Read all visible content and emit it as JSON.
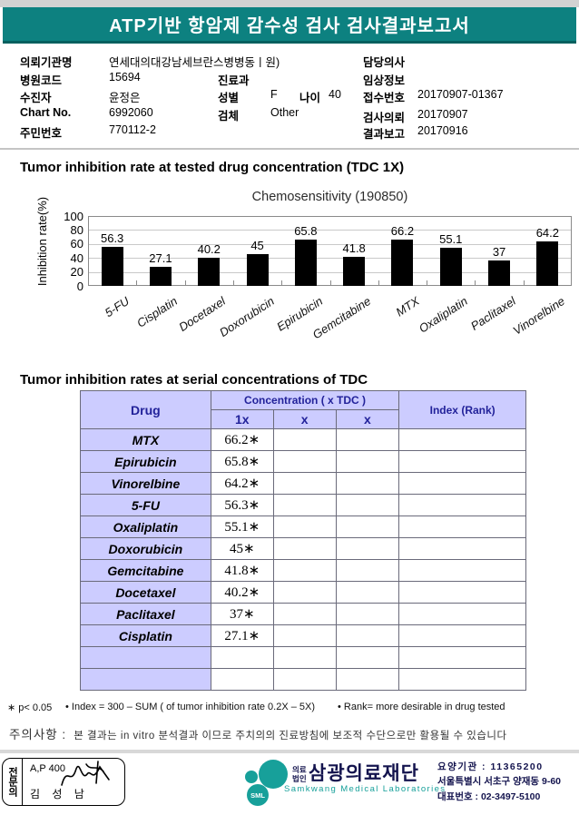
{
  "page": {
    "header_title": "ATP기반 항암제 감수성 검사 검사결과보고서",
    "section1_title": "Tumor inhibition rate at tested drug concentration (TDC 1X)",
    "section2_title": "Tumor inhibition rates at serial concentrations of TDC"
  },
  "colors": {
    "header_green": "#0d8180",
    "table_header_bg": "#ccccff",
    "table_header_text": "#22229a",
    "logo_teal": "#17a09a",
    "corp_navy": "#14144e",
    "bar_color": "#000000"
  },
  "patient": {
    "org_label": "의뢰기관명",
    "org_value": "연세대의대강남세브란스병병동ㅣ원)",
    "hospital_code_label": "병원코드",
    "hospital_code": "15694",
    "patient_label": "수진자",
    "patient_name": "윤정은",
    "chart_no_label": "Chart No.",
    "chart_no": "6992060",
    "resident_label": "주민번호",
    "resident_no": "770112-2",
    "dept_label": "진료과",
    "dept_value": "",
    "sex_label": "성별",
    "sex_value": "F",
    "age_label": "나이",
    "age_value": "40",
    "specimen_label": "검체",
    "specimen_value": "Other",
    "doctor_label": "담당의사",
    "doctor_value": "",
    "clinical_label": "임상정보",
    "clinical_value": "",
    "receipt_label": "접수번호",
    "receipt_no": "20170907-01367",
    "request_label": "검사의뢰",
    "request_date": "20170907",
    "report_label": "결과보고",
    "report_date": "20170916"
  },
  "chart_data": {
    "type": "bar",
    "title": "Chemosensitivity (190850)",
    "xlabel": "",
    "ylabel": "Inhibition rate(%)",
    "categories": [
      "5-FU",
      "Cisplatin",
      "Docetaxel",
      "Doxorubicin",
      "Epirubicin",
      "Gemcitabine",
      "MTX",
      "Oxaliplatin",
      "Paclitaxel",
      "Vinorelbine"
    ],
    "values": [
      56.3,
      27.1,
      40.2,
      45,
      65.8,
      41.8,
      66.2,
      55.1,
      37,
      64.2
    ],
    "ylim": [
      0,
      100
    ],
    "yticks": [
      0,
      20,
      40,
      60,
      80,
      100
    ],
    "grid": true,
    "legend": false,
    "bar_color": "#000000"
  },
  "table": {
    "header": {
      "drug": "Drug",
      "concentration": "Concentration ( x TDC )",
      "c1": "1x",
      "c2": "x",
      "c3": "x",
      "index": "Index (Rank)"
    },
    "rows": [
      {
        "drug": "MTX",
        "v1": "66.2∗",
        "v2": "",
        "v3": "",
        "index": ""
      },
      {
        "drug": "Epirubicin",
        "v1": "65.8∗",
        "v2": "",
        "v3": "",
        "index": ""
      },
      {
        "drug": "Vinorelbine",
        "v1": "64.2∗",
        "v2": "",
        "v3": "",
        "index": ""
      },
      {
        "drug": "5-FU",
        "v1": "56.3∗",
        "v2": "",
        "v3": "",
        "index": ""
      },
      {
        "drug": "Oxaliplatin",
        "v1": "55.1∗",
        "v2": "",
        "v3": "",
        "index": ""
      },
      {
        "drug": "Doxorubicin",
        "v1": "45∗",
        "v2": "",
        "v3": "",
        "index": ""
      },
      {
        "drug": "Gemcitabine",
        "v1": "41.8∗",
        "v2": "",
        "v3": "",
        "index": ""
      },
      {
        "drug": "Docetaxel",
        "v1": "40.2∗",
        "v2": "",
        "v3": "",
        "index": ""
      },
      {
        "drug": "Paclitaxel",
        "v1": "37∗",
        "v2": "",
        "v3": "",
        "index": ""
      },
      {
        "drug": "Cisplatin",
        "v1": "27.1∗",
        "v2": "",
        "v3": "",
        "index": ""
      },
      {
        "drug": "",
        "v1": "",
        "v2": "",
        "v3": "",
        "index": ""
      },
      {
        "drug": "",
        "v1": "",
        "v2": "",
        "v3": "",
        "index": ""
      }
    ]
  },
  "footnotes": {
    "note1": "∗ p< 0.05",
    "note2": "• Index = 300 – SUM ( of tumor inhibition rate 0.2X  –  5X)",
    "note3": "• Rank= more desirable in drug tested",
    "caution_label": "주의사항 :",
    "caution_text": "본 결과는 in vitro 분석결과 이므로 주치의의 진료방침에 보조적 수단으로만 활용될 수 있습니다"
  },
  "footer": {
    "sign_role": "전문의",
    "sign_line1": "A,P 400",
    "sign_line2": "김 성 남",
    "logo_text": "SML",
    "corp_type1": "의료",
    "corp_type2": "법인",
    "corp_name": "삼광의료재단",
    "corp_eng": "Samkwang Medical Laboratories",
    "info_line1": "요양기관 : 11365200",
    "info_line2": "서울특별시 서초구 양재동 9-60",
    "info_line3": "대표번호 : 02-3497-5100"
  }
}
